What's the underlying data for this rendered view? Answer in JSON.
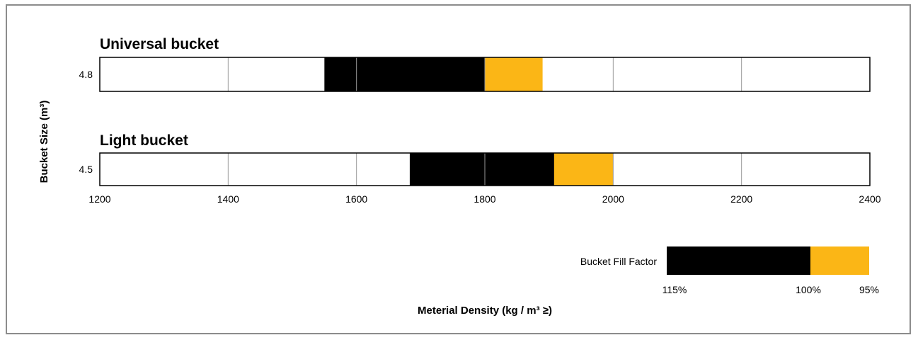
{
  "chart_data": {
    "type": "bar",
    "orientation": "horizontal",
    "ylabel": "Bucket Size (m³)",
    "xlabel": "Meterial Density (kg / m³ ≥)",
    "xlim": [
      1200,
      2400
    ],
    "x_ticks": [
      1200,
      1400,
      1600,
      1800,
      2000,
      2200,
      2400
    ],
    "grid": true,
    "colors": {
      "fill_115_to_100": "#000000",
      "fill_100_to_95": "#fbb616",
      "bar_border": "#000000",
      "grid": "#999999"
    },
    "panels": [
      {
        "title": "Universal bucket",
        "bucket_size": "4.8",
        "segments": [
          {
            "label": "115%–100%",
            "start": 1550,
            "end": 1800,
            "color": "#000000"
          },
          {
            "label": "100%–95%",
            "start": 1800,
            "end": 1890,
            "color": "#fbb616"
          }
        ]
      },
      {
        "title": "Light bucket",
        "bucket_size": "4.5",
        "segments": [
          {
            "label": "115%–100%",
            "start": 1683,
            "end": 1908,
            "color": "#000000"
          },
          {
            "label": "100%–95%",
            "start": 1908,
            "end": 2000,
            "color": "#fbb616"
          }
        ]
      }
    ],
    "legend": {
      "title": "Bucket Fill Factor",
      "placement": "bottom-right",
      "items": [
        {
          "label": "115%",
          "color": "#000000"
        },
        {
          "label": "100%",
          "color": "#fbb616"
        },
        {
          "label": "95%"
        }
      ]
    }
  }
}
